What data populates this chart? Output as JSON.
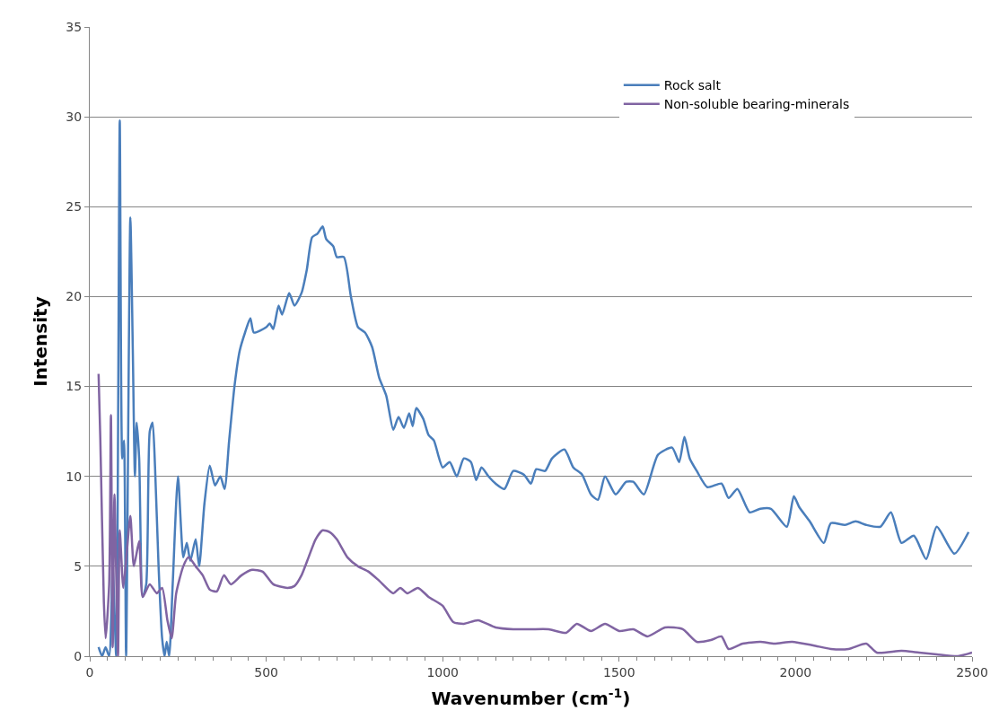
{
  "chart_data": {
    "type": "line",
    "xlabel": "Wavenumber (cm$^{-1}$)",
    "ylabel": "Intensity",
    "xlim": [
      0,
      2500
    ],
    "xticks": [
      0,
      500,
      1000,
      1500,
      2000,
      2500
    ],
    "ylim": [
      0,
      35
    ],
    "yticks": [
      0,
      5,
      10,
      15,
      20,
      25,
      30,
      35
    ],
    "grid": "y",
    "legend": "top right",
    "marker": "none",
    "line_style": "solid",
    "series": [
      {
        "name": "Rock salt",
        "color": "#4a7ebb",
        "x": [
          25,
          35,
          45,
          55,
          65,
          75,
          85,
          92,
          97,
          103,
          115,
          122,
          128,
          133,
          140,
          150,
          160,
          170,
          178,
          185,
          195,
          205,
          212,
          218,
          225,
          235,
          250,
          265,
          275,
          285,
          300,
          310,
          325,
          340,
          355,
          370,
          382,
          395,
          410,
          425,
          440,
          455,
          465,
          500,
          510,
          520,
          535,
          545,
          565,
          580,
          600,
          615,
          630,
          645,
          660,
          670,
          690,
          700,
          720,
          740,
          760,
          780,
          800,
          820,
          840,
          860,
          875,
          890,
          905,
          915,
          925,
          945,
          960,
          975,
          1000,
          1020,
          1040,
          1060,
          1080,
          1095,
          1110,
          1130,
          1150,
          1175,
          1200,
          1230,
          1250,
          1265,
          1290,
          1310,
          1345,
          1370,
          1395,
          1420,
          1440,
          1460,
          1490,
          1520,
          1540,
          1570,
          1610,
          1650,
          1670,
          1685,
          1700,
          1720,
          1750,
          1790,
          1810,
          1835,
          1870,
          1900,
          1930,
          1975,
          1995,
          2010,
          2040,
          2080,
          2100,
          2140,
          2170,
          2200,
          2240,
          2270,
          2300,
          2335,
          2370,
          2400,
          2450,
          2490
        ],
        "values": [
          0.5,
          0,
          0.5,
          0,
          5,
          0,
          29.8,
          11,
          12,
          0,
          24.4,
          17,
          10,
          13,
          11,
          3.3,
          4,
          12.5,
          13,
          10.5,
          5,
          1,
          0,
          0.8,
          0,
          4,
          10,
          5.5,
          6.3,
          5.3,
          6.5,
          5,
          8.5,
          10.6,
          9.5,
          10,
          9.3,
          12,
          15,
          17,
          18,
          18.8,
          18,
          18.3,
          18.5,
          18.2,
          19.5,
          19,
          20.2,
          19.5,
          20.2,
          21.5,
          23.3,
          23.5,
          23.9,
          23.2,
          22.8,
          22.2,
          22.2,
          20,
          18.3,
          18,
          17.2,
          15.5,
          14.5,
          12.6,
          13.3,
          12.7,
          13.5,
          12.8,
          13.8,
          13.2,
          12.3,
          12,
          10.5,
          10.8,
          10,
          11,
          10.8,
          9.8,
          10.5,
          10,
          9.6,
          9.3,
          10.3,
          10.1,
          9.6,
          10.4,
          10.3,
          11,
          11.5,
          10.5,
          10.1,
          9,
          8.7,
          10,
          9,
          9.7,
          9.7,
          9,
          11.2,
          11.6,
          10.8,
          12.2,
          11,
          10.3,
          9.4,
          9.6,
          8.8,
          9.3,
          8,
          8.2,
          8.2,
          7.2,
          8.9,
          8.3,
          7.5,
          6.3,
          7.4,
          7.3,
          7.5,
          7.3,
          7.2,
          8,
          6.3,
          6.7,
          5.4,
          7.2,
          5.7,
          6.9
        ]
      },
      {
        "name": "Non-soluble bearing-minerals",
        "color": "#8064a2",
        "x": [
          25,
          30,
          40,
          45,
          55,
          60,
          65,
          70,
          80,
          85,
          95,
          105,
          115,
          125,
          140,
          150,
          170,
          190,
          205,
          220,
          232,
          245,
          265,
          280,
          300,
          320,
          340,
          360,
          380,
          400,
          430,
          460,
          490,
          520,
          560,
          580,
          600,
          620,
          640,
          660,
          680,
          700,
          730,
          760,
          790,
          820,
          860,
          880,
          900,
          930,
          960,
          1000,
          1030,
          1060,
          1100,
          1150,
          1200,
          1250,
          1300,
          1350,
          1380,
          1420,
          1460,
          1500,
          1540,
          1580,
          1630,
          1680,
          1720,
          1760,
          1790,
          1810,
          1850,
          1900,
          1940,
          1990,
          2050,
          2100,
          2150,
          2200,
          2230,
          2300,
          2350,
          2400,
          2460,
          2500
        ],
        "values": [
          15.7,
          12,
          3,
          1,
          4,
          13.4,
          0.5,
          9,
          0,
          7,
          3.8,
          5.8,
          7.8,
          5,
          6.4,
          3.3,
          4,
          3.5,
          3.8,
          2,
          1,
          3.5,
          5,
          5.5,
          5,
          4.5,
          3.7,
          3.6,
          4.5,
          4,
          4.5,
          4.8,
          4.7,
          4,
          3.8,
          3.9,
          4.5,
          5.5,
          6.5,
          7,
          6.9,
          6.5,
          5.5,
          5,
          4.7,
          4.2,
          3.5,
          3.8,
          3.5,
          3.8,
          3.3,
          2.8,
          1.9,
          1.8,
          2,
          1.6,
          1.5,
          1.5,
          1.5,
          1.3,
          1.8,
          1.4,
          1.8,
          1.4,
          1.5,
          1.1,
          1.6,
          1.5,
          0.8,
          0.9,
          1.1,
          0.4,
          0.7,
          0.8,
          0.7,
          0.8,
          0.6,
          0.4,
          0.4,
          0.7,
          0.2,
          0.3,
          0.2,
          0.1,
          0,
          0.2
        ]
      }
    ]
  }
}
